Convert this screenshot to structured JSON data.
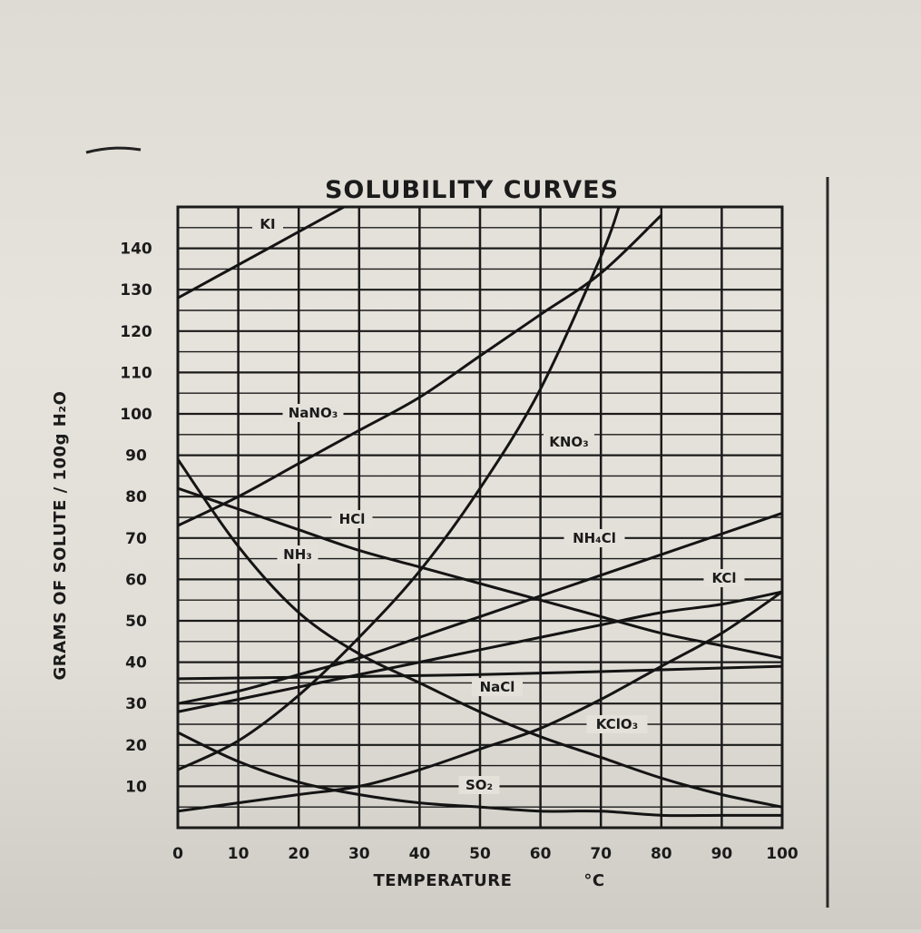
{
  "chart_data": {
    "type": "line",
    "title": "SOLUBILITY CURVES",
    "xlabel": "TEMPERATURE",
    "xunit": "°C",
    "ylabel": "GRAMS OF SOLUTE / 100g H₂O",
    "xlim": [
      0,
      100
    ],
    "ylim": [
      0,
      150
    ],
    "x_ticks": [
      0,
      10,
      20,
      30,
      40,
      50,
      60,
      70,
      80,
      90,
      100
    ],
    "y_ticks": [
      10,
      20,
      30,
      40,
      50,
      60,
      70,
      80,
      90,
      100,
      110,
      120,
      130,
      140
    ],
    "grid": true,
    "series": [
      {
        "name": "KI",
        "points": [
          [
            0,
            128
          ],
          [
            10,
            136
          ],
          [
            20,
            144
          ],
          [
            30,
            152
          ]
        ]
      },
      {
        "name": "NaNO₃",
        "points": [
          [
            0,
            73
          ],
          [
            10,
            80
          ],
          [
            20,
            88
          ],
          [
            30,
            96
          ],
          [
            40,
            104
          ],
          [
            50,
            114
          ],
          [
            60,
            124
          ],
          [
            70,
            134
          ],
          [
            80,
            148
          ]
        ]
      },
      {
        "name": "KNO₃",
        "points": [
          [
            0,
            14
          ],
          [
            10,
            21
          ],
          [
            20,
            32
          ],
          [
            30,
            46
          ],
          [
            40,
            62
          ],
          [
            50,
            82
          ],
          [
            60,
            106
          ],
          [
            70,
            138
          ],
          [
            73,
            150
          ]
        ]
      },
      {
        "name": "HCl",
        "points": [
          [
            0,
            82
          ],
          [
            10,
            77
          ],
          [
            20,
            72
          ],
          [
            30,
            67
          ],
          [
            40,
            63
          ],
          [
            50,
            59
          ],
          [
            60,
            55
          ],
          [
            70,
            51
          ],
          [
            80,
            47
          ],
          [
            90,
            44
          ],
          [
            100,
            41
          ]
        ]
      },
      {
        "name": "NH₃",
        "points": [
          [
            0,
            89
          ],
          [
            10,
            68
          ],
          [
            20,
            52
          ],
          [
            30,
            42
          ],
          [
            40,
            35
          ],
          [
            50,
            28
          ],
          [
            60,
            22
          ],
          [
            70,
            17
          ],
          [
            80,
            12
          ],
          [
            90,
            8
          ],
          [
            100,
            5
          ]
        ]
      },
      {
        "name": "NH₄Cl",
        "points": [
          [
            0,
            30
          ],
          [
            10,
            33
          ],
          [
            20,
            37
          ],
          [
            30,
            41
          ],
          [
            40,
            46
          ],
          [
            50,
            51
          ],
          [
            60,
            56
          ],
          [
            70,
            61
          ],
          [
            80,
            66
          ],
          [
            90,
            71
          ],
          [
            100,
            76
          ]
        ]
      },
      {
        "name": "KCl",
        "points": [
          [
            0,
            28
          ],
          [
            10,
            31
          ],
          [
            20,
            34
          ],
          [
            30,
            37
          ],
          [
            40,
            40
          ],
          [
            50,
            43
          ],
          [
            60,
            46
          ],
          [
            70,
            49
          ],
          [
            80,
            52
          ],
          [
            90,
            54
          ],
          [
            100,
            57
          ]
        ]
      },
      {
        "name": "NaCl",
        "points": [
          [
            0,
            36
          ],
          [
            50,
            37
          ],
          [
            100,
            39
          ]
        ]
      },
      {
        "name": "KClO₃",
        "points": [
          [
            0,
            4
          ],
          [
            10,
            6
          ],
          [
            20,
            8
          ],
          [
            30,
            10
          ],
          [
            40,
            14
          ],
          [
            50,
            19
          ],
          [
            60,
            24
          ],
          [
            70,
            31
          ],
          [
            80,
            39
          ],
          [
            90,
            47
          ],
          [
            100,
            57
          ]
        ]
      },
      {
        "name": "SO₂",
        "points": [
          [
            0,
            23
          ],
          [
            10,
            16
          ],
          [
            20,
            11
          ],
          [
            30,
            8
          ],
          [
            40,
            6
          ],
          [
            50,
            5
          ],
          [
            60,
            4
          ],
          [
            70,
            4
          ],
          [
            80,
            3
          ],
          [
            90,
            3
          ],
          [
            100,
            3
          ]
        ]
      }
    ]
  }
}
